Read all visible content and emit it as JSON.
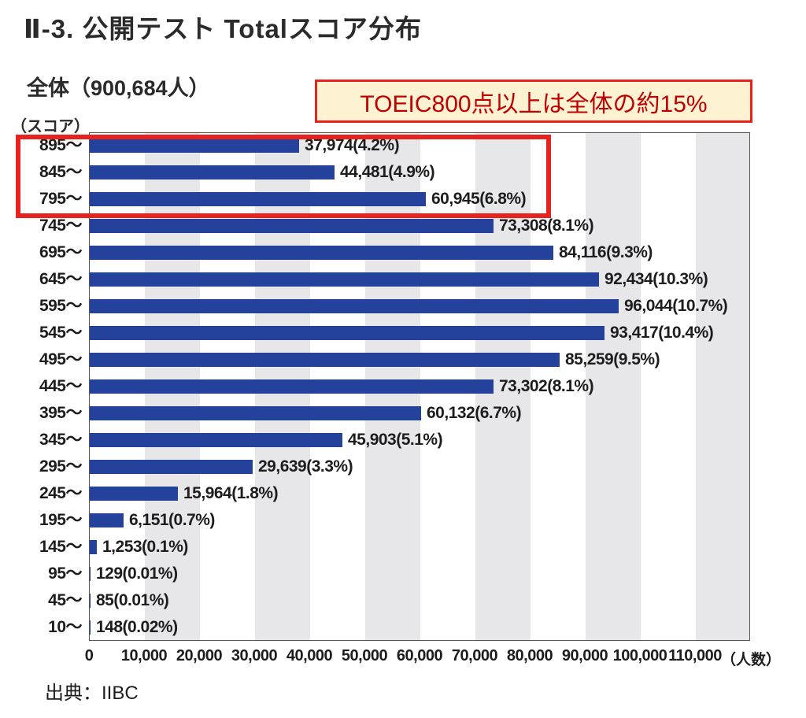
{
  "page": {
    "title": "Ⅱ-3. 公開テスト Totalスコア分布",
    "subtitle": "全体（900,684人）",
    "annotation": "TOEIC800点以上は全体の約15%",
    "source": "出典：IIBC"
  },
  "chart_data": {
    "type": "bar",
    "orientation": "horizontal",
    "title": "全体（900,684人）",
    "total_count": "900,684",
    "y_axis_label": "（スコア）",
    "x_axis_unit": "（人数）",
    "xlim": [
      0,
      120000
    ],
    "grid": "alternating vertical bands every 10,000",
    "x_ticks": [
      "0",
      "10,000",
      "20,000",
      "30,000",
      "40,000",
      "50,000",
      "60,000",
      "70,000",
      "80,000",
      "90,000",
      "100,000",
      "110,000"
    ],
    "bar_color": "#24419b",
    "stripe_color": "#e7e7e9",
    "categories": [
      "895～",
      "845～",
      "795～",
      "745～",
      "695～",
      "645～",
      "595～",
      "545～",
      "495～",
      "445～",
      "395～",
      "345～",
      "295～",
      "245～",
      "195～",
      "145～",
      "95～",
      "45～",
      "10～"
    ],
    "values": [
      37974,
      44481,
      60945,
      73308,
      84116,
      92434,
      96044,
      93417,
      85259,
      73302,
      60132,
      45903,
      29639,
      15964,
      6151,
      1253,
      129,
      85,
      148
    ],
    "labels": [
      "37,974(4.2%)",
      "44,481(4.9%)",
      "60,945(6.8%)",
      "73,308(8.1%)",
      "84,116(9.3%)",
      "92,434(10.3%)",
      "96,044(10.7%)",
      "93,417(10.4%)",
      "85,259(9.5%)",
      "73,302(8.1%)",
      "60,132(6.7%)",
      "45,903(5.1%)",
      "29,639(3.3%)",
      "15,964(1.8%)",
      "6,151(0.7%)",
      "1,253(0.1%)",
      "129(0.01%)",
      "85(0.01%)",
      "148(0.02%)"
    ],
    "highlight": {
      "rows": [
        "895～",
        "845～",
        "795～"
      ],
      "note": "TOEIC800点以上は全体の約15%",
      "color": "#e8231d"
    }
  }
}
